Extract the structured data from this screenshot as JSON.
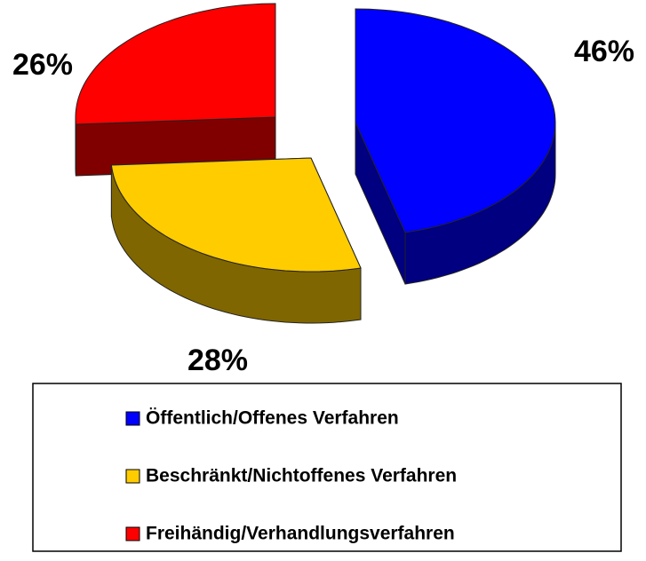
{
  "chart_data": {
    "type": "pie",
    "categories": [
      "Öffentlich/Offenes Verfahren",
      "Beschränkt/Nichtoffenes Verfahren",
      "Freihändig/Verhandlungsverfahren"
    ],
    "values": [
      46,
      28,
      26
    ],
    "value_labels": [
      "46%",
      "28%",
      "26%"
    ],
    "colors": [
      "#0000ff",
      "#ffcc00",
      "#ff0000"
    ],
    "legend": "bottom"
  }
}
